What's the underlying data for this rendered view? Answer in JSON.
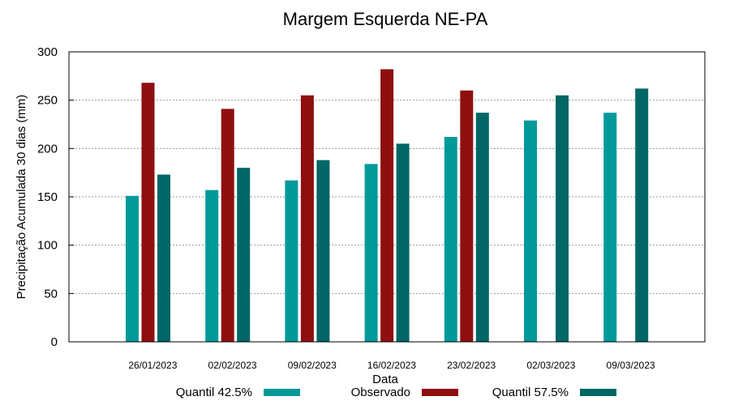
{
  "chart_data": {
    "type": "bar",
    "title": "Margem Esquerda NE-PA",
    "xlabel": "Data",
    "ylabel": "Precipitação Acumulada 30 dias (mm)",
    "ylim": [
      0,
      300
    ],
    "yticks": [
      0,
      50,
      100,
      150,
      200,
      250,
      300
    ],
    "grid": true,
    "legend_position": "bottom",
    "categories": [
      "26/01/2023",
      "02/02/2023",
      "09/02/2023",
      "16/02/2023",
      "23/02/2023",
      "02/03/2023",
      "09/03/2023"
    ],
    "series": [
      {
        "name": "Quantil 42.5%",
        "color": "#009999",
        "values": [
          151,
          157,
          167,
          184,
          212,
          229,
          237
        ]
      },
      {
        "name": "Observado",
        "color": "#8f0f0f",
        "values": [
          268,
          241,
          255,
          282,
          260,
          null,
          null
        ]
      },
      {
        "name": "Quantil 57.5%",
        "color": "#006666",
        "values": [
          173,
          180,
          188,
          205,
          237,
          255,
          262
        ]
      }
    ]
  }
}
